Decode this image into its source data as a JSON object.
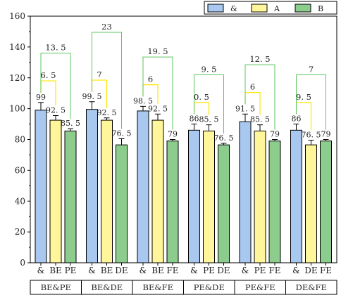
{
  "chart_data": {
    "type": "bar",
    "ylim": [
      0,
      160
    ],
    "yticks": [
      0,
      20,
      40,
      60,
      80,
      100,
      120,
      140,
      160
    ],
    "grid": false,
    "legend_position": "top-right",
    "series": [
      {
        "name": "&",
        "color": "#a9c8ef"
      },
      {
        "name": "A",
        "color": "#fff59a"
      },
      {
        "name": "B",
        "color": "#8ccc8c"
      }
    ],
    "groups": [
      {
        "label": "BE&PE",
        "bars": [
          "&",
          "BE",
          "PE"
        ],
        "values": [
          99,
          92.5,
          85.5
        ],
        "value_labels": [
          "99",
          "92.5",
          "85.5"
        ],
        "errors": [
          5,
          3,
          1.5
        ],
        "diffs": [
          {
            "label": "6.5",
            "value_label": "6. 5"
          },
          {
            "label": "13.5",
            "value_label": "13. 5"
          }
        ]
      },
      {
        "label": "BE&DE",
        "bars": [
          "&",
          "BE",
          "DE"
        ],
        "values": [
          99.5,
          92.5,
          76.5
        ],
        "value_labels": [
          "99.5",
          "92.5",
          "76.5"
        ],
        "errors": [
          5,
          1.5,
          4
        ],
        "diffs": [
          {
            "label": "7",
            "value_label": "7"
          },
          {
            "label": "23",
            "value_label": "23"
          }
        ]
      },
      {
        "label": "BE&FE",
        "bars": [
          "&",
          "BE",
          "FE"
        ],
        "values": [
          98.5,
          92.5,
          79
        ],
        "value_labels": [
          "98.5",
          "92.5",
          "79"
        ],
        "errors": [
          3,
          4,
          1
        ],
        "diffs": [
          {
            "label": "6",
            "value_label": "6"
          },
          {
            "label": "19.5",
            "value_label": "19. 5"
          }
        ]
      },
      {
        "label": "PE&DE",
        "bars": [
          "&",
          "PE",
          "DE"
        ],
        "values": [
          86,
          85.5,
          76.5
        ],
        "value_labels": [
          "86",
          "85.5",
          "76.5"
        ],
        "errors": [
          4,
          4,
          1
        ],
        "diffs": [
          {
            "label": "0.5",
            "value_label": "0. 5"
          },
          {
            "label": "9.5",
            "value_label": "9. 5"
          }
        ]
      },
      {
        "label": "PE&FE",
        "bars": [
          "&",
          "PE",
          "FE"
        ],
        "values": [
          91.5,
          85.5,
          79
        ],
        "value_labels": [
          "91.5",
          "85.5",
          "79"
        ],
        "errors": [
          5,
          4,
          1
        ],
        "diffs": [
          {
            "label": "6",
            "value_label": "6"
          },
          {
            "label": "12.5",
            "value_label": "12. 5"
          }
        ]
      },
      {
        "label": "DE&FE",
        "bars": [
          "&",
          "DE",
          "FE"
        ],
        "values": [
          86,
          76.5,
          79
        ],
        "value_labels": [
          "86",
          "76.5",
          "79"
        ],
        "errors": [
          4,
          3,
          1
        ],
        "diffs": [
          {
            "label": "9.5",
            "value_label": "9. 5"
          },
          {
            "label": "7",
            "value_label": "7"
          }
        ]
      }
    ]
  }
}
